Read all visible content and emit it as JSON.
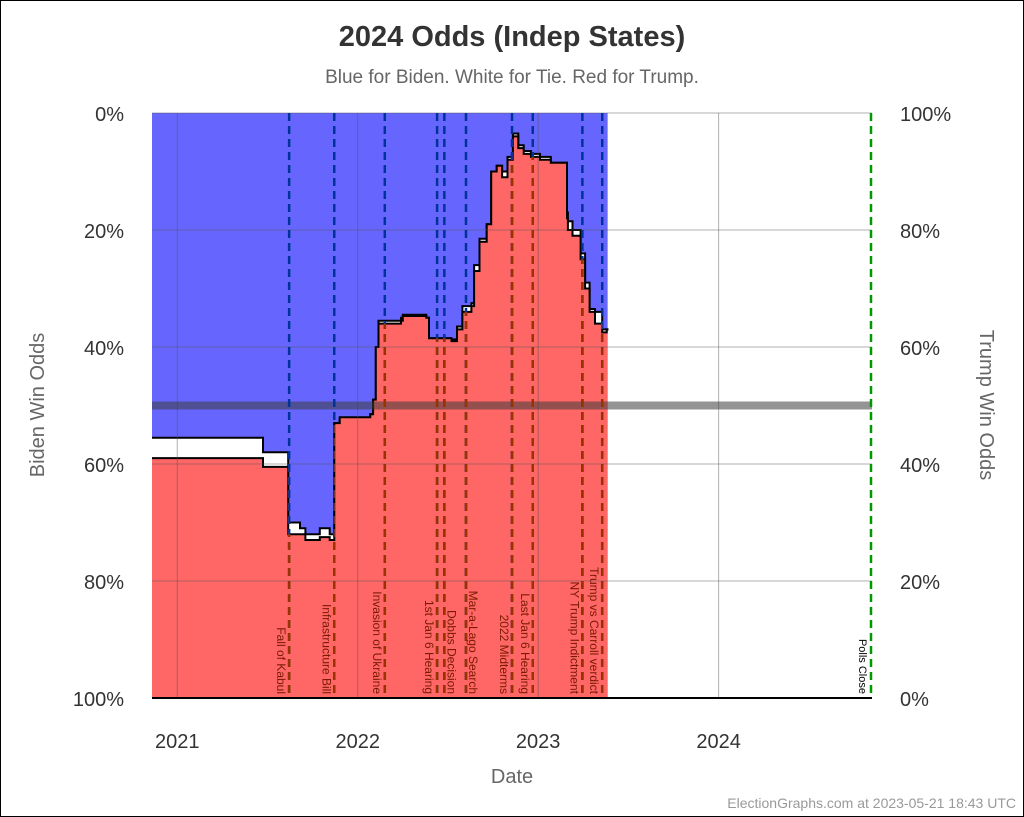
{
  "chart_data": {
    "type": "area",
    "title": "2024 Odds (Indep States)",
    "subtitle": "Blue for Biden. White for Tie. Red for Trump.",
    "xlabel": "Date",
    "ylabel_left": "Biden Win Odds",
    "ylabel_right": "Trump Win Odds",
    "xlim": [
      2020.86,
      2024.85
    ],
    "ylim": [
      0,
      100
    ],
    "x_ticks": [
      {
        "v": 2021,
        "label": "2021"
      },
      {
        "v": 2022,
        "label": "2022"
      },
      {
        "v": 2023,
        "label": "2023"
      },
      {
        "v": 2024,
        "label": "2024"
      }
    ],
    "y_ticks_left": [
      "0%",
      "20%",
      "40%",
      "60%",
      "80%",
      "100%"
    ],
    "y_ticks_right": [
      "100%",
      "80%",
      "60%",
      "40%",
      "20%",
      "0%"
    ],
    "grid": true,
    "colors": {
      "biden": "#6666ff",
      "trump": "#ff6666",
      "tie": "#ffffff",
      "event_top": "#003399",
      "event_bottom": "#993300",
      "polls": "#009900"
    },
    "series_note": "x = fractional year; trump = Trump win %, biden = Biden win %",
    "x": [
      2020.86,
      2021.47,
      2021.475,
      2021.615,
      2021.68,
      2021.71,
      2021.79,
      2021.845,
      2021.87,
      2021.9,
      2022.07,
      2022.085,
      2022.1,
      2022.115,
      2022.14,
      2022.24,
      2022.25,
      2022.38,
      2022.395,
      2022.52,
      2022.55,
      2022.58,
      2022.63,
      2022.645,
      2022.675,
      2022.715,
      2022.74,
      2022.77,
      2022.8,
      2022.83,
      2022.86,
      2022.89,
      2022.92,
      2022.96,
      2023.01,
      2023.07,
      2023.16,
      2023.165,
      2023.19,
      2023.235,
      2023.26,
      2023.285,
      2023.315,
      2023.355,
      2023.38,
      2023.39
    ],
    "trump": [
      41,
      41,
      39.5,
      28,
      28,
      27,
      27.5,
      27,
      47,
      48,
      48.5,
      51,
      60,
      64,
      64,
      64.5,
      65.3,
      65,
      61.5,
      61,
      63,
      66,
      67,
      73,
      78,
      81,
      90,
      91,
      89,
      92,
      96,
      94,
      93,
      92.5,
      92,
      91.5,
      82,
      80,
      79,
      75,
      70,
      66,
      64,
      62.5,
      63,
      63
    ],
    "biden": [
      55.5,
      55.5,
      58,
      70,
      71,
      72,
      71,
      72,
      53,
      52.5,
      51.5,
      49,
      40,
      35.5,
      35.5,
      35,
      34.5,
      35,
      38.5,
      38.7,
      36.5,
      33,
      32.5,
      26,
      21.5,
      19,
      10,
      9,
      10,
      7.5,
      3.5,
      5.5,
      6.5,
      7,
      7.5,
      8.5,
      17,
      18.5,
      20,
      24,
      29,
      33.5,
      34,
      37,
      37,
      37
    ],
    "events": [
      {
        "date": 2021.62,
        "label": "Fall of Kabul"
      },
      {
        "date": 2021.87,
        "label": "Infrastructure Bill"
      },
      {
        "date": 2022.15,
        "label": "Invasion of Ukraine"
      },
      {
        "date": 2022.44,
        "label": "1st Jan 6 Hearing"
      },
      {
        "date": 2022.48,
        "label": "Dobbs Decision"
      },
      {
        "date": 2022.6,
        "label": "Mar-a-Lago Search"
      },
      {
        "date": 2022.855,
        "label": "2022 Midterms"
      },
      {
        "date": 2022.97,
        "label": "Last Jan 6 Hearing"
      },
      {
        "date": 2023.245,
        "label": "NY Trump Indictment"
      },
      {
        "date": 2023.355,
        "label": "Trump vs Carroll verdict"
      }
    ],
    "polls_close": {
      "date": 2024.85,
      "label": "Polls Close"
    },
    "data_end": 2023.385
  },
  "footer": "ElectionGraphs.com at 2023-05-21 18:43 UTC"
}
